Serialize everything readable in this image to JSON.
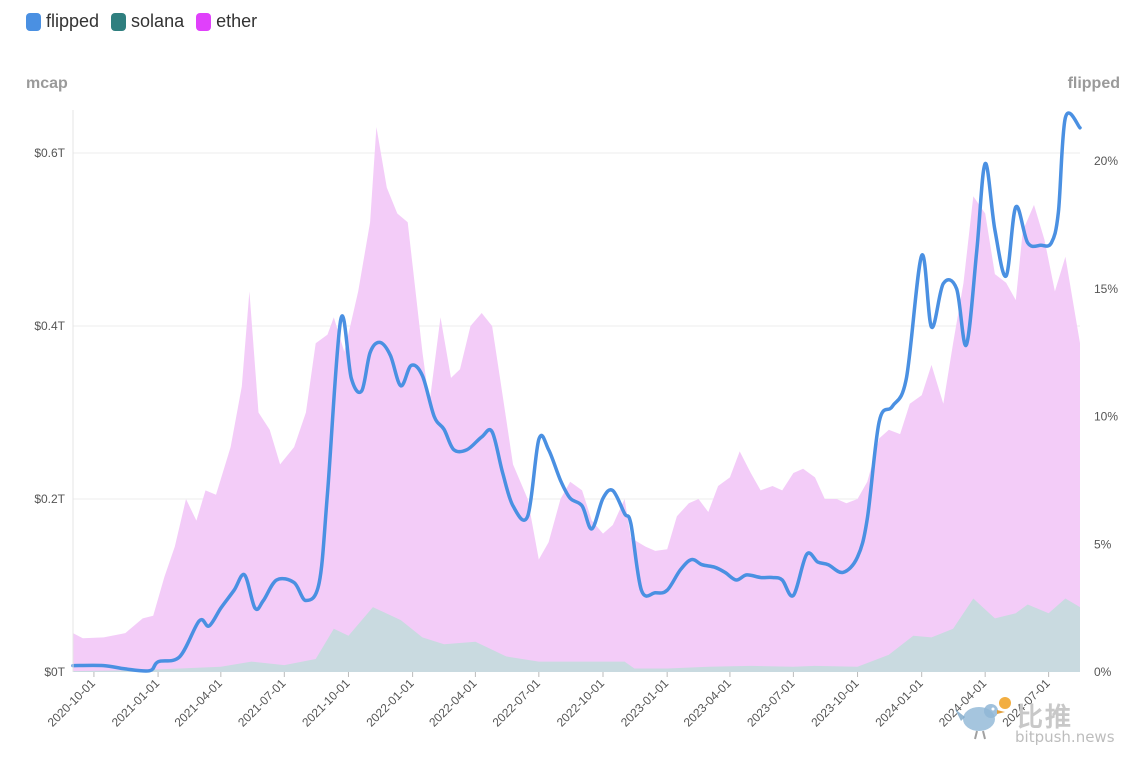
{
  "legend": [
    {
      "label": "flipped",
      "color": "#4a90e2"
    },
    {
      "label": "solana",
      "color": "#2f7f7f"
    },
    {
      "label": "ether",
      "color": "#e040fb"
    }
  ],
  "axes": {
    "left_title": "mcap",
    "right_title": "flipped"
  },
  "watermark": {
    "brand_cn": "比推",
    "brand_en": "bitpush.news"
  },
  "chart_data": {
    "type": "area",
    "title": "",
    "x_tick_labels": [
      "2020-10-01",
      "2021-01-01",
      "2021-04-01",
      "2021-07-01",
      "2021-10-01",
      "2022-01-01",
      "2022-04-01",
      "2022-07-01",
      "2022-10-01",
      "2023-01-01",
      "2023-04-01",
      "2023-07-01",
      "2023-10-01",
      "2024-01-01",
      "2024-04-01",
      "2024-07-01"
    ],
    "x_range": [
      "2020-09-01",
      "2024-08-15"
    ],
    "left_axis": {
      "label": "mcap",
      "ticks": [
        "$0T",
        "$0.2T",
        "$0.4T",
        "$0.6T"
      ],
      "tick_values": [
        0,
        0.2,
        0.4,
        0.6
      ],
      "range": [
        0,
        0.6
      ],
      "unit": "T USD"
    },
    "right_axis": {
      "label": "flipped",
      "ticks": [
        "0%",
        "5%",
        "10%",
        "15%",
        "20%"
      ],
      "tick_values": [
        0,
        5,
        10,
        15,
        20
      ],
      "range": [
        0,
        20
      ],
      "unit": "%"
    },
    "grid": "horizontal",
    "legend_position": "top-left",
    "series": [
      {
        "name": "ether",
        "axis": "left",
        "color": "#f3ccf8",
        "points": [
          [
            "2020-09-01",
            0.045
          ],
          [
            "2020-09-15",
            0.039
          ],
          [
            "2020-10-15",
            0.04
          ],
          [
            "2020-11-15",
            0.045
          ],
          [
            "2020-12-10",
            0.062
          ],
          [
            "2020-12-25",
            0.065
          ],
          [
            "2021-01-10",
            0.11
          ],
          [
            "2021-01-25",
            0.145
          ],
          [
            "2021-02-10",
            0.2
          ],
          [
            "2021-02-25",
            0.175
          ],
          [
            "2021-03-10",
            0.21
          ],
          [
            "2021-03-25",
            0.205
          ],
          [
            "2021-04-15",
            0.26
          ],
          [
            "2021-05-01",
            0.33
          ],
          [
            "2021-05-12",
            0.44
          ],
          [
            "2021-05-25",
            0.3
          ],
          [
            "2021-06-10",
            0.28
          ],
          [
            "2021-06-25",
            0.24
          ],
          [
            "2021-07-15",
            0.26
          ],
          [
            "2021-08-01",
            0.3
          ],
          [
            "2021-08-15",
            0.38
          ],
          [
            "2021-09-01",
            0.39
          ],
          [
            "2021-09-10",
            0.41
          ],
          [
            "2021-09-25",
            0.37
          ],
          [
            "2021-10-15",
            0.44
          ],
          [
            "2021-11-01",
            0.52
          ],
          [
            "2021-11-10",
            0.63
          ],
          [
            "2021-11-25",
            0.56
          ],
          [
            "2021-12-10",
            0.53
          ],
          [
            "2021-12-25",
            0.52
          ],
          [
            "2022-01-15",
            0.37
          ],
          [
            "2022-01-25",
            0.31
          ],
          [
            "2022-02-10",
            0.41
          ],
          [
            "2022-02-25",
            0.34
          ],
          [
            "2022-03-10",
            0.35
          ],
          [
            "2022-03-25",
            0.4
          ],
          [
            "2022-04-10",
            0.415
          ],
          [
            "2022-04-25",
            0.4
          ],
          [
            "2022-05-10",
            0.32
          ],
          [
            "2022-05-25",
            0.24
          ],
          [
            "2022-06-15",
            0.2
          ],
          [
            "2022-07-01",
            0.13
          ],
          [
            "2022-07-15",
            0.15
          ],
          [
            "2022-08-01",
            0.2
          ],
          [
            "2022-08-15",
            0.22
          ],
          [
            "2022-09-01",
            0.21
          ],
          [
            "2022-09-15",
            0.175
          ],
          [
            "2022-10-01",
            0.16
          ],
          [
            "2022-10-15",
            0.17
          ],
          [
            "2022-11-01",
            0.2
          ],
          [
            "2022-11-10",
            0.155
          ],
          [
            "2022-12-01",
            0.145
          ],
          [
            "2022-12-15",
            0.14
          ],
          [
            "2023-01-01",
            0.142
          ],
          [
            "2023-01-15",
            0.18
          ],
          [
            "2023-02-01",
            0.195
          ],
          [
            "2023-02-15",
            0.2
          ],
          [
            "2023-03-01",
            0.185
          ],
          [
            "2023-03-15",
            0.215
          ],
          [
            "2023-04-01",
            0.225
          ],
          [
            "2023-04-15",
            0.255
          ],
          [
            "2023-05-01",
            0.23
          ],
          [
            "2023-05-15",
            0.21
          ],
          [
            "2023-06-01",
            0.215
          ],
          [
            "2023-06-15",
            0.21
          ],
          [
            "2023-07-01",
            0.23
          ],
          [
            "2023-07-15",
            0.235
          ],
          [
            "2023-08-01",
            0.225
          ],
          [
            "2023-08-15",
            0.2
          ],
          [
            "2023-09-01",
            0.2
          ],
          [
            "2023-09-15",
            0.195
          ],
          [
            "2023-10-01",
            0.2
          ],
          [
            "2023-10-15",
            0.22
          ],
          [
            "2023-11-01",
            0.27
          ],
          [
            "2023-11-15",
            0.28
          ],
          [
            "2023-12-01",
            0.275
          ],
          [
            "2023-12-15",
            0.31
          ],
          [
            "2024-01-01",
            0.32
          ],
          [
            "2024-01-15",
            0.355
          ],
          [
            "2024-02-01",
            0.31
          ],
          [
            "2024-02-15",
            0.38
          ],
          [
            "2024-03-01",
            0.45
          ],
          [
            "2024-03-15",
            0.55
          ],
          [
            "2024-04-01",
            0.53
          ],
          [
            "2024-04-15",
            0.46
          ],
          [
            "2024-05-01",
            0.45
          ],
          [
            "2024-05-15",
            0.43
          ],
          [
            "2024-05-25",
            0.51
          ],
          [
            "2024-06-10",
            0.54
          ],
          [
            "2024-06-25",
            0.5
          ],
          [
            "2024-07-10",
            0.44
          ],
          [
            "2024-07-25",
            0.48
          ],
          [
            "2024-08-15",
            0.38
          ]
        ]
      },
      {
        "name": "solana",
        "axis": "left",
        "color": "#c9dae0",
        "points": [
          [
            "2020-09-01",
            0.001
          ],
          [
            "2020-12-01",
            0.002
          ],
          [
            "2021-02-01",
            0.004
          ],
          [
            "2021-04-01",
            0.006
          ],
          [
            "2021-05-15",
            0.012
          ],
          [
            "2021-07-01",
            0.008
          ],
          [
            "2021-08-15",
            0.015
          ],
          [
            "2021-09-10",
            0.05
          ],
          [
            "2021-10-01",
            0.042
          ],
          [
            "2021-11-05",
            0.075
          ],
          [
            "2021-12-15",
            0.06
          ],
          [
            "2022-01-15",
            0.04
          ],
          [
            "2022-02-15",
            0.032
          ],
          [
            "2022-04-01",
            0.035
          ],
          [
            "2022-05-15",
            0.018
          ],
          [
            "2022-07-01",
            0.012
          ],
          [
            "2022-09-01",
            0.012
          ],
          [
            "2022-11-01",
            0.012
          ],
          [
            "2022-11-15",
            0.004
          ],
          [
            "2023-01-01",
            0.004
          ],
          [
            "2023-03-01",
            0.006
          ],
          [
            "2023-05-01",
            0.007
          ],
          [
            "2023-07-01",
            0.006
          ],
          [
            "2023-08-01",
            0.007
          ],
          [
            "2023-10-01",
            0.006
          ],
          [
            "2023-11-15",
            0.02
          ],
          [
            "2023-12-20",
            0.042
          ],
          [
            "2024-01-15",
            0.04
          ],
          [
            "2024-02-15",
            0.05
          ],
          [
            "2024-03-15",
            0.085
          ],
          [
            "2024-04-15",
            0.062
          ],
          [
            "2024-05-15",
            0.068
          ],
          [
            "2024-06-01",
            0.078
          ],
          [
            "2024-07-01",
            0.068
          ],
          [
            "2024-07-25",
            0.085
          ],
          [
            "2024-08-15",
            0.075
          ]
        ]
      },
      {
        "name": "flipped",
        "axis": "right",
        "color": "#4a90e2",
        "points": [
          [
            "2020-09-01",
            0.25
          ],
          [
            "2020-10-15",
            0.25
          ],
          [
            "2020-11-15",
            0.12
          ],
          [
            "2020-12-20",
            0.05
          ],
          [
            "2021-01-01",
            0.4
          ],
          [
            "2021-02-01",
            0.6
          ],
          [
            "2021-03-01",
            2.0
          ],
          [
            "2021-03-15",
            1.8
          ],
          [
            "2021-04-01",
            2.5
          ],
          [
            "2021-04-20",
            3.2
          ],
          [
            "2021-05-05",
            3.8
          ],
          [
            "2021-05-20",
            2.5
          ],
          [
            "2021-06-01",
            2.8
          ],
          [
            "2021-06-20",
            3.6
          ],
          [
            "2021-07-15",
            3.5
          ],
          [
            "2021-08-01",
            2.8
          ],
          [
            "2021-08-20",
            3.5
          ],
          [
            "2021-09-01",
            7.0
          ],
          [
            "2021-09-20",
            13.8
          ],
          [
            "2021-10-05",
            11.5
          ],
          [
            "2021-10-20",
            11.0
          ],
          [
            "2021-11-01",
            12.5
          ],
          [
            "2021-11-15",
            12.9
          ],
          [
            "2021-11-30",
            12.4
          ],
          [
            "2021-12-15",
            11.2
          ],
          [
            "2021-12-30",
            12.0
          ],
          [
            "2022-01-15",
            11.6
          ],
          [
            "2022-02-01",
            10.0
          ],
          [
            "2022-02-15",
            9.5
          ],
          [
            "2022-03-01",
            8.7
          ],
          [
            "2022-03-20",
            8.7
          ],
          [
            "2022-04-10",
            9.2
          ],
          [
            "2022-04-25",
            9.4
          ],
          [
            "2022-05-10",
            7.8
          ],
          [
            "2022-05-25",
            6.5
          ],
          [
            "2022-06-15",
            6.1
          ],
          [
            "2022-07-01",
            9.1
          ],
          [
            "2022-07-15",
            8.7
          ],
          [
            "2022-08-01",
            7.5
          ],
          [
            "2022-08-15",
            6.8
          ],
          [
            "2022-09-01",
            6.5
          ],
          [
            "2022-09-15",
            5.6
          ],
          [
            "2022-10-01",
            6.8
          ],
          [
            "2022-10-15",
            7.1
          ],
          [
            "2022-11-01",
            6.2
          ],
          [
            "2022-11-10",
            5.8
          ],
          [
            "2022-11-25",
            3.2
          ],
          [
            "2022-12-15",
            3.1
          ],
          [
            "2023-01-01",
            3.2
          ],
          [
            "2023-01-20",
            4.0
          ],
          [
            "2023-02-05",
            4.4
          ],
          [
            "2023-02-20",
            4.2
          ],
          [
            "2023-03-10",
            4.1
          ],
          [
            "2023-03-25",
            3.9
          ],
          [
            "2023-04-10",
            3.6
          ],
          [
            "2023-04-25",
            3.8
          ],
          [
            "2023-05-15",
            3.7
          ],
          [
            "2023-06-01",
            3.7
          ],
          [
            "2023-06-15",
            3.6
          ],
          [
            "2023-07-01",
            3.0
          ],
          [
            "2023-07-20",
            4.6
          ],
          [
            "2023-08-05",
            4.3
          ],
          [
            "2023-08-20",
            4.2
          ],
          [
            "2023-09-10",
            3.9
          ],
          [
            "2023-10-01",
            4.5
          ],
          [
            "2023-10-15",
            6.0
          ],
          [
            "2023-11-01",
            9.8
          ],
          [
            "2023-11-20",
            10.4
          ],
          [
            "2023-12-10",
            11.5
          ],
          [
            "2024-01-01",
            16.3
          ],
          [
            "2024-01-15",
            13.5
          ],
          [
            "2024-02-01",
            15.2
          ],
          [
            "2024-02-20",
            15.0
          ],
          [
            "2024-03-05",
            12.8
          ],
          [
            "2024-03-20",
            16.5
          ],
          [
            "2024-04-01",
            19.9
          ],
          [
            "2024-04-15",
            17.3
          ],
          [
            "2024-05-01",
            15.5
          ],
          [
            "2024-05-15",
            18.2
          ],
          [
            "2024-06-01",
            16.8
          ],
          [
            "2024-06-20",
            16.7
          ],
          [
            "2024-07-05",
            16.8
          ],
          [
            "2024-07-15",
            18.0
          ],
          [
            "2024-07-25",
            21.7
          ],
          [
            "2024-08-15",
            21.3
          ]
        ]
      }
    ]
  }
}
